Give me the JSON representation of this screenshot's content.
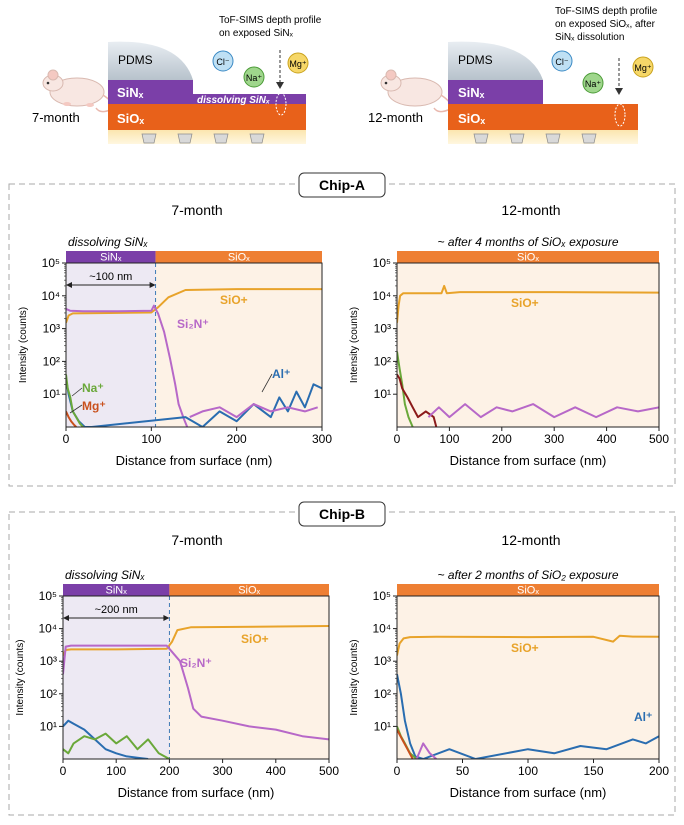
{
  "colors": {
    "sinx": "#7b3fa8",
    "siox": "#e8611a",
    "siox_bar": "#ee7f33",
    "sio_line": "#e8a32a",
    "si2n_line": "#b768c8",
    "al_line": "#2a6db0",
    "na_line": "#6aa83a",
    "mg_line": "#c9501c",
    "dark_red": "#8b1a1a",
    "region_left": "#ede9f3",
    "region_right": "#fdf2e6"
  },
  "schematic": {
    "left": {
      "pdms": "PDMS",
      "sinx": "SiNₓ",
      "siox": "SiOₓ",
      "dissolving": "dissolving SiNₓ",
      "age": "7-month",
      "tof1": "ToF-SIMS depth profile",
      "tof2": "on exposed SiNₓ",
      "ion_cl": "Cl⁻",
      "ion_na": "Na⁺",
      "ion_mg": "Mg⁺"
    },
    "right": {
      "pdms": "PDMS",
      "sinx": "SiNₓ",
      "siox": "SiOₓ",
      "age": "12-month",
      "tof1": "ToF-SIMS depth profile",
      "tof2": "on exposed SiOₓ, after",
      "tof3": "SiNₓ dissolution",
      "ion_cl": "Cl⁻",
      "ion_na": "Na⁺",
      "ion_mg": "Mg⁺"
    }
  },
  "panels": {
    "a": {
      "label": "Chip-A",
      "left_title": "7-month",
      "right_title": "12-month"
    },
    "b": {
      "label": "Chip-B",
      "left_title": "7-month",
      "right_title": "12-month"
    }
  },
  "chart_data": [
    {
      "type": "line",
      "title": "7-month",
      "subtitle": "dissolving SiNₓ",
      "xlabel": "Distance from surface (nm)",
      "ylabel": "Intensity (counts)",
      "xlim": [
        0,
        300
      ],
      "ylim": [
        1,
        100000
      ],
      "yscale": "log",
      "xticks": [
        0,
        100,
        200,
        300
      ],
      "yticks": [
        "10¹",
        "10²",
        "10³",
        "10⁴",
        "10⁵"
      ],
      "bands": [
        {
          "label": "SiNₓ",
          "from": 0,
          "to": 105,
          "color": "#7b3fa8"
        },
        {
          "label": "SiOₓ",
          "from": 105,
          "to": 300,
          "color": "#ee7f33"
        }
      ],
      "boundary": 105,
      "span": {
        "label": "~100 nm",
        "from": 0,
        "to": 105
      },
      "series": [
        {
          "name": "SiO+",
          "color": "#e8a32a",
          "x": [
            0,
            3,
            8,
            50,
            100,
            108,
            120,
            140,
            200,
            300
          ],
          "y": [
            1500,
            2500,
            2900,
            3000,
            3100,
            4500,
            9000,
            15000,
            16000,
            16000
          ]
        },
        {
          "name": "Si₂N⁺",
          "color": "#b768c8",
          "x": [
            0,
            5,
            20,
            60,
            100,
            103,
            108,
            115,
            122,
            128,
            132,
            138,
            142
          ],
          "y": [
            4000,
            3500,
            3400,
            3400,
            3500,
            5000,
            2800,
            800,
            120,
            20,
            5,
            1.8,
            1
          ]
        },
        {
          "name": "Al⁺",
          "color": "#2a6db0",
          "x": [
            0,
            3,
            8,
            15,
            22,
            30,
            140,
            160,
            180,
            200,
            220,
            240,
            250,
            260,
            270,
            280,
            290,
            300
          ],
          "y": [
            30,
            10,
            3,
            1.5,
            1,
            1,
            2,
            1,
            3,
            1.5,
            5,
            2,
            8,
            3,
            12,
            4,
            20,
            15
          ]
        },
        {
          "name": "Na⁺",
          "color": "#6aa83a",
          "x": [
            0,
            2,
            5,
            8,
            12,
            16,
            20
          ],
          "y": [
            40,
            15,
            8,
            3,
            2,
            1.3,
            1
          ]
        },
        {
          "name": "Mg⁺",
          "color": "#c9501c",
          "x": [
            0,
            3,
            6,
            9,
            12
          ],
          "y": [
            3,
            2,
            1.5,
            1.2,
            1
          ]
        },
        {
          "name": "",
          "color": "#b768c8",
          "x": [
            145,
            160,
            180,
            200,
            220,
            240,
            260,
            280,
            295
          ],
          "y": [
            2,
            3,
            4,
            2,
            5,
            3,
            4,
            3,
            4
          ]
        }
      ]
    },
    {
      "type": "line",
      "title": "12-month",
      "subtitle": "~ after 4 months of SiOₓ exposure",
      "xlabel": "Distance from surface (nm)",
      "ylabel": "Intensity (counts)",
      "xlim": [
        0,
        500
      ],
      "ylim": [
        1,
        100000
      ],
      "yscale": "log",
      "xticks": [
        0,
        100,
        200,
        300,
        400,
        500
      ],
      "yticks": [
        "10¹",
        "10²",
        "10³",
        "10⁴",
        "10⁵"
      ],
      "bands": [
        {
          "label": "SiOₓ",
          "from": 0,
          "to": 500,
          "color": "#ee7f33"
        }
      ],
      "series": [
        {
          "name": "SiO+",
          "color": "#e8a32a",
          "x": [
            0,
            3,
            6,
            12,
            30,
            85,
            90,
            95,
            120,
            300,
            500
          ],
          "y": [
            1500,
            5000,
            10000,
            12000,
            12000,
            12000,
            20000,
            12000,
            13000,
            13000,
            12500
          ]
        },
        {
          "name": "",
          "color": "#6aa83a",
          "x": [
            0,
            5,
            10,
            15,
            22,
            30
          ],
          "y": [
            200,
            60,
            20,
            5,
            2,
            1
          ]
        },
        {
          "name": "",
          "color": "#8b1a1a",
          "x": [
            0,
            5,
            10,
            20,
            30,
            40,
            55,
            70,
            75
          ],
          "y": [
            40,
            30,
            15,
            8,
            4,
            2,
            3,
            2,
            1
          ]
        },
        {
          "name": "",
          "color": "#b768c8",
          "x": [
            60,
            80,
            100,
            130,
            160,
            190,
            220,
            260,
            300,
            340,
            380,
            420,
            460,
            500
          ],
          "y": [
            2,
            4,
            2,
            5,
            2,
            4,
            3,
            5,
            2,
            4,
            2,
            4,
            3,
            4
          ]
        }
      ]
    },
    {
      "type": "line",
      "title": "7-month",
      "subtitle": "dissolving SiNₓ",
      "xlabel": "Distance from surface (nm)",
      "ylabel": "Intensity (counts)",
      "xlim": [
        0,
        500
      ],
      "ylim": [
        1,
        100000
      ],
      "yscale": "log",
      "xticks": [
        0,
        100,
        200,
        300,
        400,
        500
      ],
      "yticks": [
        "10¹",
        "10²",
        "10³",
        "10⁴",
        "10⁵"
      ],
      "bands": [
        {
          "label": "SiNₓ",
          "from": 0,
          "to": 200,
          "color": "#7b3fa8"
        },
        {
          "label": "SiOₓ",
          "from": 200,
          "to": 500,
          "color": "#ee7f33"
        }
      ],
      "boundary": 200,
      "span": {
        "label": "~200 nm",
        "from": 0,
        "to": 200
      },
      "series": [
        {
          "name": "SiO+",
          "color": "#e8a32a",
          "x": [
            0,
            5,
            15,
            100,
            195,
            205,
            215,
            240,
            500
          ],
          "y": [
            1500,
            2200,
            2300,
            2300,
            2400,
            4000,
            9000,
            11000,
            12000
          ]
        },
        {
          "name": "Si₂N⁺",
          "color": "#b768c8",
          "x": [
            0,
            5,
            15,
            100,
            195,
            200,
            220,
            235,
            245,
            260,
            300,
            350,
            400,
            450,
            500
          ],
          "y": [
            400,
            2800,
            3000,
            3000,
            3000,
            2400,
            1000,
            150,
            35,
            20,
            15,
            10,
            8,
            5,
            4
          ]
        },
        {
          "name": "",
          "color": "#2a6db0",
          "x": [
            0,
            10,
            20,
            40,
            60,
            80,
            100,
            120,
            140,
            160
          ],
          "y": [
            10,
            15,
            12,
            8,
            4,
            2,
            1.5,
            1.2,
            1.1,
            1
          ]
        },
        {
          "name": "",
          "color": "#6aa83a",
          "x": [
            0,
            10,
            20,
            40,
            60,
            80,
            100,
            120,
            140,
            160,
            180,
            200
          ],
          "y": [
            2,
            1.5,
            3,
            5,
            4,
            6,
            3,
            5,
            2,
            4,
            1.5,
            1
          ]
        }
      ]
    },
    {
      "type": "line",
      "title": "12-month",
      "subtitle": "~ after 2 months of SiO₂ exposure",
      "xlabel": "Distance from surface (nm)",
      "ylabel": "Intensity (counts)",
      "xlim": [
        0,
        200
      ],
      "ylim": [
        1,
        100000
      ],
      "yscale": "log",
      "xticks": [
        0,
        50,
        100,
        150,
        200
      ],
      "yticks": [
        "10¹",
        "10²",
        "10³",
        "10⁴",
        "10⁵"
      ],
      "bands": [
        {
          "label": "SiOₓ",
          "from": 0,
          "to": 200,
          "color": "#ee7f33"
        }
      ],
      "series": [
        {
          "name": "SiO+",
          "color": "#e8a32a",
          "x": [
            0,
            2,
            5,
            10,
            30,
            100,
            150,
            165,
            170,
            180,
            200
          ],
          "y": [
            1500,
            3500,
            5000,
            5500,
            5600,
            5500,
            5600,
            4000,
            6000,
            5700,
            5600
          ]
        },
        {
          "name": "Al⁺",
          "color": "#2a6db0",
          "x": [
            0,
            3,
            6,
            10,
            14,
            20,
            40,
            60,
            100,
            120,
            140,
            160,
            180,
            190,
            200
          ],
          "y": [
            400,
            100,
            15,
            3,
            1.2,
            1,
            2,
            1,
            2,
            1.5,
            2.5,
            2,
            4,
            3,
            5
          ]
        },
        {
          "name": "",
          "color": "#6aa83a",
          "x": [
            0,
            3,
            6,
            10,
            15
          ],
          "y": [
            10,
            5,
            3,
            1.5,
            1
          ]
        },
        {
          "name": "",
          "color": "#c9501c",
          "x": [
            0,
            4,
            8,
            12
          ],
          "y": [
            8,
            4,
            2,
            1
          ]
        },
        {
          "name": "",
          "color": "#b768c8",
          "x": [
            15,
            20,
            25,
            30
          ],
          "y": [
            1,
            3,
            1.5,
            1
          ]
        }
      ]
    }
  ]
}
